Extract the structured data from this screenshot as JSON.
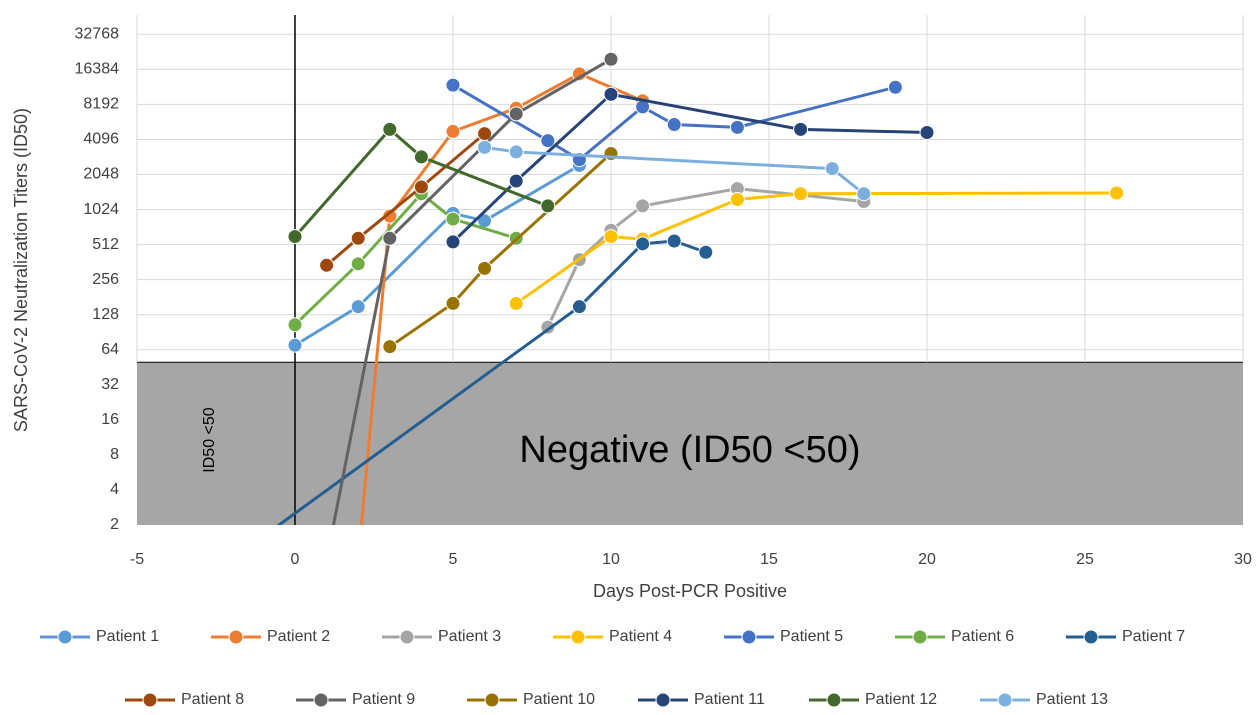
{
  "chart_data": {
    "type": "line",
    "x_label": "Days Post-PCR Positive",
    "y_label": "SARS-CoV-2 Neutralization Titers (ID50)",
    "log_scale_y": 2,
    "xlim": [
      -5,
      30
    ],
    "xticks": [
      -5,
      0,
      5,
      10,
      15,
      20,
      25,
      30
    ],
    "ylim": [
      2,
      48000
    ],
    "yticks": [
      2,
      4,
      8,
      16,
      32,
      64,
      128,
      256,
      512,
      1024,
      2048,
      4096,
      8192,
      16384,
      32768
    ],
    "grid": true,
    "negative_threshold": 50,
    "negative_color": "#a6a6a6",
    "reference_line_x": 0,
    "annotations": [
      "Negative (ID50 <50)",
      "ID50 <50"
    ],
    "legend": "bottom",
    "series": [
      {
        "name": "Patient 1",
        "color": "#5b9bd5",
        "x": [
          0,
          2,
          5,
          6,
          9
        ],
        "values": [
          70,
          150,
          950,
          820,
          2450
        ]
      },
      {
        "name": "Patient 2",
        "color": "#ed7d31",
        "x": [
          2,
          3,
          5,
          7,
          9,
          11
        ],
        "values": [
          1,
          900,
          4800,
          7600,
          15000,
          8800
        ]
      },
      {
        "name": "Patient 3",
        "color": "#a5a5a5",
        "x": [
          8,
          9,
          10,
          11,
          14,
          18
        ],
        "values": [
          100,
          380,
          680,
          1100,
          1550,
          1200
        ]
      },
      {
        "name": "Patient 4",
        "color": "#ffc000",
        "x": [
          7,
          10,
          11,
          14,
          16,
          26
        ],
        "values": [
          160,
          600,
          570,
          1250,
          1400,
          1420
        ]
      },
      {
        "name": "Patient 5",
        "color": "#4472c4",
        "x": [
          5,
          8,
          9,
          11,
          12,
          14,
          19
        ],
        "values": [
          12000,
          4000,
          2750,
          7800,
          5500,
          5200,
          11500
        ]
      },
      {
        "name": "Patient 6",
        "color": "#70ad47",
        "x": [
          0,
          2,
          4,
          5,
          7
        ],
        "values": [
          105,
          350,
          1400,
          850,
          580
        ]
      },
      {
        "name": "Patient 7",
        "color": "#255e91",
        "x": [
          -1,
          9,
          11,
          12,
          13
        ],
        "values": [
          1.6,
          150,
          520,
          550,
          440
        ]
      },
      {
        "name": "Patient 8",
        "color": "#9e480e",
        "x": [
          1,
          2,
          4,
          6
        ],
        "values": [
          340,
          580,
          1600,
          4600
        ]
      },
      {
        "name": "Patient 9",
        "color": "#636363",
        "x": [
          1,
          3,
          7,
          10
        ],
        "values": [
          1,
          580,
          6800,
          20000
        ]
      },
      {
        "name": "Patient 10",
        "color": "#997300",
        "x": [
          3,
          5,
          6,
          10
        ],
        "values": [
          68,
          160,
          320,
          3100
        ]
      },
      {
        "name": "Patient 11",
        "color": "#264478",
        "x": [
          5,
          7,
          10,
          16,
          20
        ],
        "values": [
          540,
          1800,
          10000,
          5000,
          4700
        ]
      },
      {
        "name": "Patient 12",
        "color": "#43682b",
        "x": [
          0,
          3,
          4,
          8
        ],
        "values": [
          600,
          5000,
          2900,
          1100
        ]
      },
      {
        "name": "Patient 13",
        "color": "#7cafdd",
        "x": [
          6,
          7,
          17,
          18
        ],
        "values": [
          3500,
          3200,
          2300,
          1400
        ]
      }
    ]
  }
}
